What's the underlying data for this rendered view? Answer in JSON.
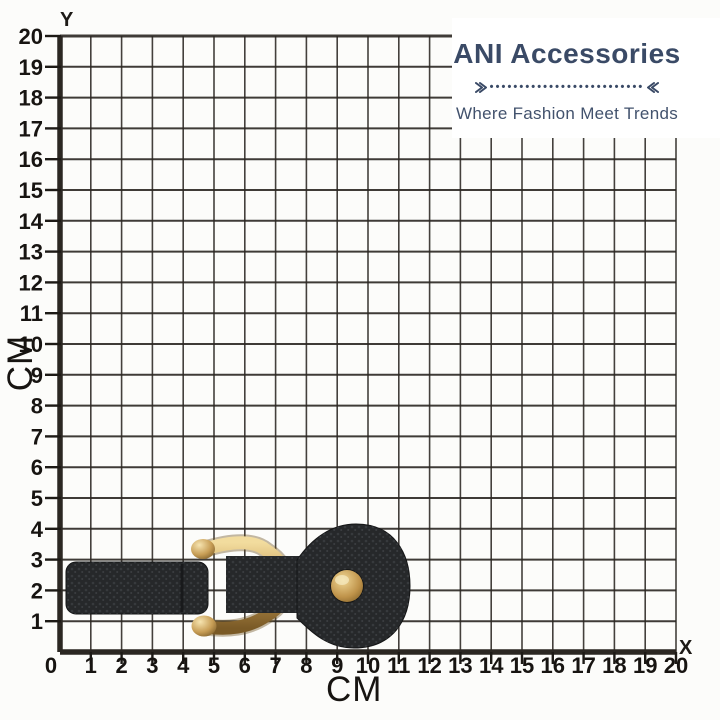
{
  "page": {
    "background": "#fcfcfa"
  },
  "brand": {
    "name": "ANI Accessories",
    "tagline": "Where Fashion Meet Trends",
    "divider_dots": "••••••••••••••••••••••••••",
    "colors": {
      "title": "#3a4a66",
      "tagline": "#42526d",
      "divider": "#3a4a66"
    }
  },
  "grid": {
    "x_axis_letter": "X",
    "y_axis_letter": "Y",
    "x_unit_label": "CM",
    "y_unit_label": "CM",
    "range_cm": [
      0,
      20
    ],
    "line_color": "#2b2722",
    "x_tick_labels": [
      "0",
      "1",
      "2",
      "3",
      "4",
      "5",
      "6",
      "7",
      "8",
      "9",
      "10",
      "11",
      "12",
      "13",
      "14",
      "15",
      "16",
      "17",
      "18",
      "19",
      "20"
    ],
    "y_tick_labels": [
      "1",
      "2",
      "3",
      "4",
      "5",
      "6",
      "7",
      "8",
      "9",
      "10",
      "11",
      "12",
      "13",
      "14",
      "15",
      "16",
      "17",
      "18",
      "19",
      "20"
    ]
  },
  "product": {
    "description": "Black pebbled-leather keychain with gold shackle buckle and round gold stud",
    "leather_color": "#26282a",
    "gold_color": "#c49a52",
    "approx_width_cm": 11,
    "approx_height_cm": 4
  }
}
